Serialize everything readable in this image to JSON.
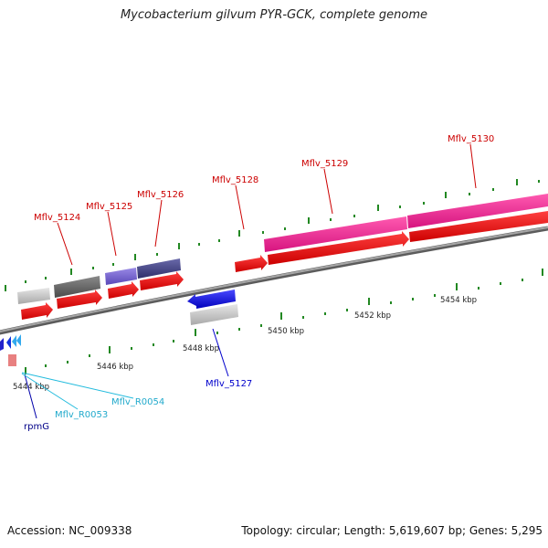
{
  "title": "Mycobacterium gilvum PYR-GCK, complete genome",
  "footer": {
    "accession": "Accession: NC_009338",
    "topology": "Topology: circular; Length: 5,619,607 bp; Genes: 5,295"
  },
  "scale_labels": [
    "5444 kbp",
    "5446 kbp",
    "5448 kbp",
    "5450 kbp",
    "5452 kbp",
    "5454 kbp"
  ],
  "genes": {
    "mflv_5124": "Mflv_5124",
    "mflv_5125": "Mflv_5125",
    "mflv_5126": "Mflv_5126",
    "mflv_5127": "Mflv_5127",
    "mflv_5128": "Mflv_5128",
    "mflv_5129": "Mflv_5129",
    "mflv_5130": "Mflv_5130",
    "mflv_r0053": "Mflv_R0053",
    "mflv_r0054": "Mflv_R0054",
    "rpmg": "rpmG"
  },
  "colors": {
    "forward_gene": "#cc0000",
    "reverse_gene": "#0000cc",
    "rna_gene": "#22aacc",
    "backbone": "#888888",
    "tick": "#228822",
    "pink_feature": "#e8198a"
  }
}
